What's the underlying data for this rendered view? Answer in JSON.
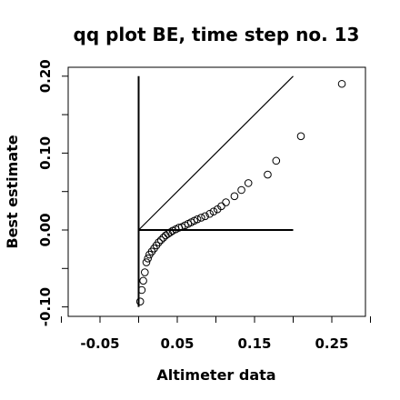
{
  "chart_data": {
    "type": "scatter",
    "title": "qq plot BE, time step no. 13",
    "xlabel": "Altimeter data",
    "ylabel": "Best estimate",
    "xlim": [
      -0.1,
      0.3
    ],
    "ylim": [
      -0.11,
      0.22
    ],
    "x_ticks": [
      {
        "value": -0.05,
        "label": "-0.05"
      },
      {
        "value": 0.05,
        "label": "0.05"
      },
      {
        "value": 0.15,
        "label": "0.15"
      },
      {
        "value": 0.25,
        "label": "0.25"
      }
    ],
    "y_ticks": [
      {
        "value": -0.1,
        "label": "-0.10"
      },
      {
        "value": 0.0,
        "label": "0.00"
      },
      {
        "value": 0.1,
        "label": "0.10"
      },
      {
        "value": 0.2,
        "label": "0.20"
      }
    ],
    "x_minor_ticks": [
      -0.1,
      0.0,
      0.1,
      0.2,
      0.3
    ],
    "y_minor_ticks": [
      -0.05,
      0.05,
      0.15
    ],
    "grid": false,
    "reference_lines": [
      {
        "name": "identity",
        "x": [
          0.0,
          0.2
        ],
        "y": [
          0.0,
          0.2
        ]
      },
      {
        "name": "horizontal",
        "x": [
          0.0,
          0.2
        ],
        "y": [
          0.0,
          0.0
        ]
      },
      {
        "name": "vertical",
        "x": [
          0.0,
          0.0
        ],
        "y": [
          -0.1,
          0.2
        ]
      }
    ],
    "points": {
      "x": [
        0.002,
        0.004,
        0.006,
        0.008,
        0.01,
        0.012,
        0.014,
        0.017,
        0.02,
        0.023,
        0.026,
        0.029,
        0.032,
        0.035,
        0.038,
        0.041,
        0.044,
        0.048,
        0.052,
        0.056,
        0.06,
        0.064,
        0.068,
        0.072,
        0.076,
        0.081,
        0.086,
        0.092,
        0.097,
        0.102,
        0.107,
        0.113,
        0.124,
        0.133,
        0.142,
        0.167,
        0.178,
        0.21,
        0.263
      ],
      "y": [
        -0.093,
        -0.078,
        -0.066,
        -0.055,
        -0.042,
        -0.037,
        -0.032,
        -0.028,
        -0.024,
        -0.02,
        -0.016,
        -0.013,
        -0.01,
        -0.007,
        -0.005,
        -0.003,
        -0.001,
        0.001,
        0.003,
        0.004,
        0.006,
        0.008,
        0.01,
        0.012,
        0.014,
        0.016,
        0.018,
        0.021,
        0.024,
        0.027,
        0.031,
        0.036,
        0.044,
        0.052,
        0.061,
        0.072,
        0.09,
        0.122,
        0.19
      ]
    }
  }
}
